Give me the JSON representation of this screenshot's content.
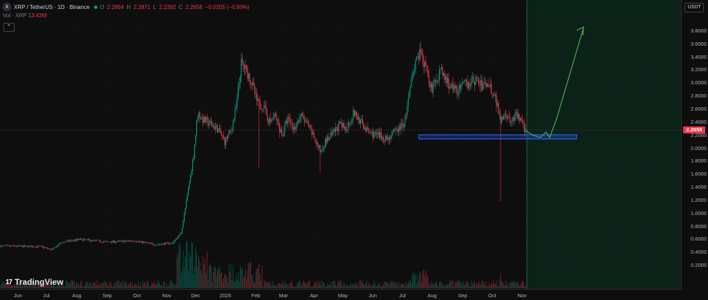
{
  "legend": {
    "symbol_icon": "X",
    "title": "XRP / TetherUS · 1D · Binance",
    "open_label": "O",
    "open": "2.2864",
    "high_label": "H",
    "high": "2.2871",
    "low_label": "L",
    "low": "2.2392",
    "close_label": "C",
    "close": "2.2658",
    "change": "−0.0205 (−0.90%)"
  },
  "volume_legend": {
    "label": "Vol · XRP",
    "value": "13.43M"
  },
  "collapse_icon": "chevron-up-icon",
  "collapse_glyph": "⌃",
  "currency": "USDT",
  "current_price": "2.2658",
  "price_axis": [
    "3.8000",
    "3.6000",
    "3.4000",
    "3.2000",
    "3.0000",
    "2.8000",
    "2.6000",
    "2.4000",
    "2.2000",
    "2.0000",
    "1.8000",
    "1.6000",
    "1.4000",
    "1.2000",
    "1.0000",
    "0.8000",
    "0.6000",
    "0.4000",
    "0.2000"
  ],
  "time_axis": [
    "Jun",
    "Jul",
    "Aug",
    "Sep",
    "Oct",
    "Nov",
    "Dec",
    "2025",
    "Feb",
    "Mar",
    "Apr",
    "May",
    "Jun",
    "Jul",
    "Aug",
    "Sep",
    "Oct",
    "Nov"
  ],
  "branding": {
    "mark": "17",
    "name": "TradingView"
  },
  "colors": {
    "up": "#089981",
    "down": "#f23645",
    "projection": "#4caf50",
    "zone": "#2962ff",
    "forecast_bg": "#0b2218"
  }
}
